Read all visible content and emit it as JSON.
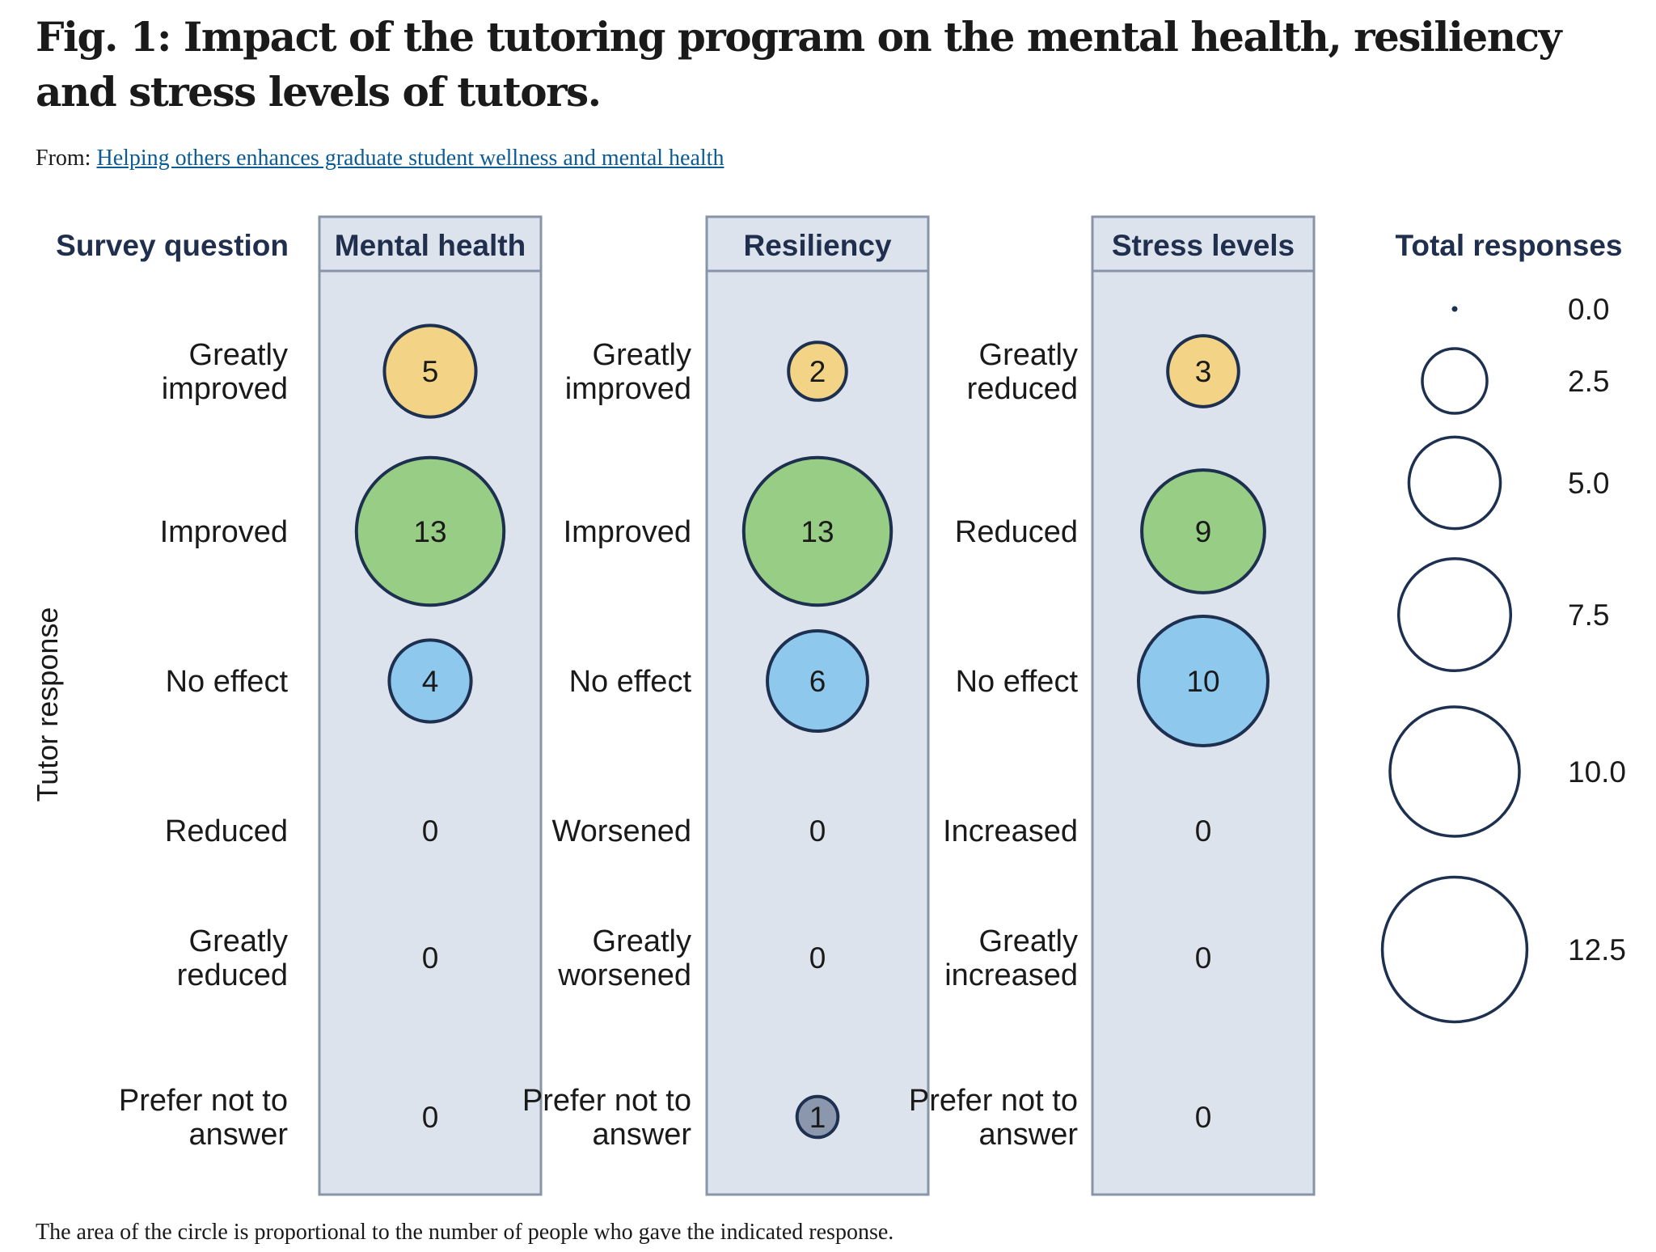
{
  "figure": {
    "title": "Fig. 1: Impact of the tutoring program on the mental health, resiliency and stress levels of tutors.",
    "source_prefix": "From:",
    "source_link": "Helping others enhances graduate student wellness and mental health",
    "caption": "The area of the circle is proportional to the number of people who gave the indicated response."
  },
  "chart_data": {
    "type": "bubble-matrix",
    "row_header": "Survey question",
    "y_axis_label": "Tutor response",
    "encoding": "circle area proportional to count",
    "panels": [
      {
        "name": "Mental health",
        "responses": [
          {
            "label": "Greatly improved",
            "value": 5,
            "color": "#f3d486"
          },
          {
            "label": "Improved",
            "value": 13,
            "color": "#97cd84"
          },
          {
            "label": "No effect",
            "value": 4,
            "color": "#8ec8ed"
          },
          {
            "label": "Reduced",
            "value": 0,
            "color": "#cdd4e0"
          },
          {
            "label": "Greatly reduced",
            "value": 0,
            "color": "#cdd4e0"
          },
          {
            "label": "Prefer not to answer",
            "value": 0,
            "color": "#8b97ad"
          }
        ]
      },
      {
        "name": "Resiliency",
        "responses": [
          {
            "label": "Greatly improved",
            "value": 2,
            "color": "#f3d486"
          },
          {
            "label": "Improved",
            "value": 13,
            "color": "#97cd84"
          },
          {
            "label": "No effect",
            "value": 6,
            "color": "#8ec8ed"
          },
          {
            "label": "Worsened",
            "value": 0,
            "color": "#cdd4e0"
          },
          {
            "label": "Greatly worsened",
            "value": 0,
            "color": "#cdd4e0"
          },
          {
            "label": "Prefer not to answer",
            "value": 1,
            "color": "#8b97ad"
          }
        ]
      },
      {
        "name": "Stress levels",
        "responses": [
          {
            "label": "Greatly reduced",
            "value": 3,
            "color": "#f3d486"
          },
          {
            "label": "Reduced",
            "value": 9,
            "color": "#97cd84"
          },
          {
            "label": "No effect",
            "value": 10,
            "color": "#8ec8ed"
          },
          {
            "label": "Increased",
            "value": 0,
            "color": "#cdd4e0"
          },
          {
            "label": "Greatly increased",
            "value": 0,
            "color": "#cdd4e0"
          },
          {
            "label": "Prefer not to answer",
            "value": 0,
            "color": "#8b97ad"
          }
        ]
      }
    ],
    "legend": {
      "title": "Total responses",
      "values": [
        0.0,
        2.5,
        5.0,
        7.5,
        10.0,
        12.5
      ],
      "labels": [
        "0.0",
        "2.5",
        "5.0",
        "7.5",
        "10.0",
        "12.5"
      ]
    },
    "colors": {
      "panel_fill": "#dde3ec",
      "panel_border": "#8894a8",
      "outline": "#1e3050",
      "header_text": "#1f2f4d"
    }
  }
}
